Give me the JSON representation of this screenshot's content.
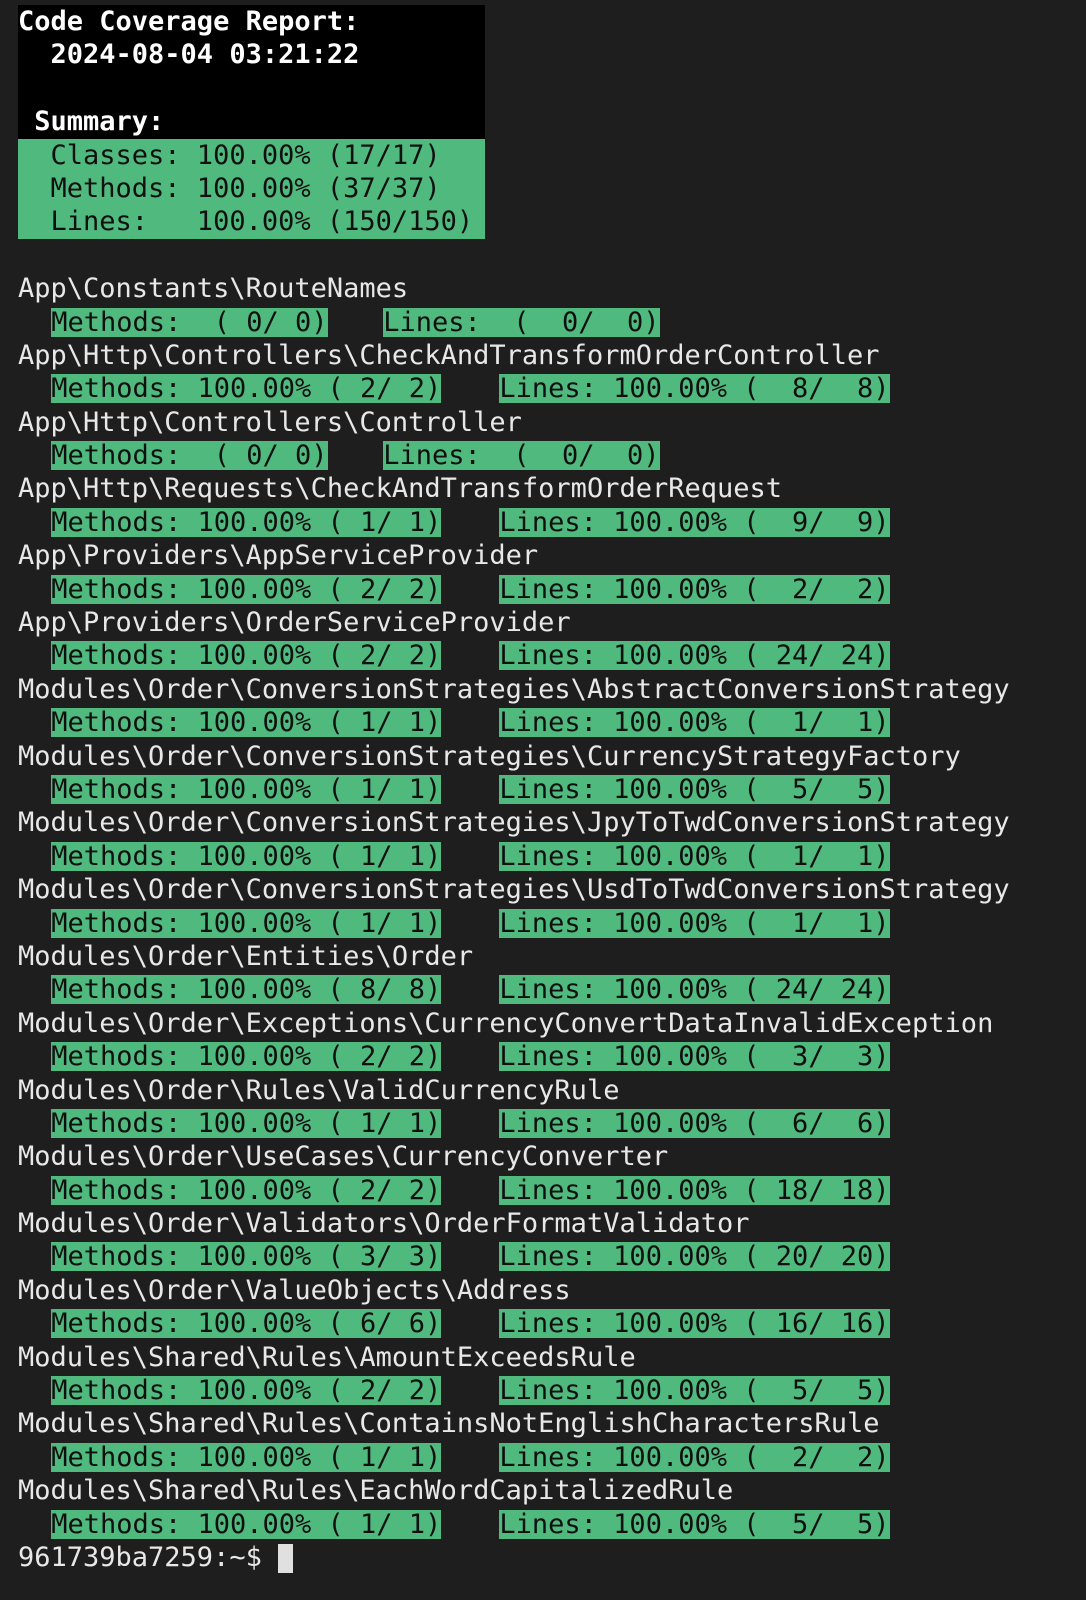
{
  "report": {
    "title": "Code Coverage Report:",
    "timestamp": "  2024-08-04 03:21:22",
    "summary_label": " Summary:",
    "summary": {
      "classes": "  Classes: 100.00% (17/17)",
      "methods": "  Methods: 100.00% (37/37)",
      "lines": "  Lines:   100.00% (150/150)"
    }
  },
  "colors": {
    "background": "#1e1e1e",
    "header_background": "#000000",
    "highlight": "#50b97e"
  },
  "classes": [
    {
      "name": "App\\Constants\\RouteNames",
      "methods": "Methods:  ( 0/ 0)",
      "lines": "Lines:  (  0/  0)",
      "covered": false
    },
    {
      "name": "App\\Http\\Controllers\\CheckAndTransformOrderController",
      "methods": "Methods: 100.00% ( 2/ 2)",
      "lines": "Lines: 100.00% (  8/  8)",
      "covered": true
    },
    {
      "name": "App\\Http\\Controllers\\Controller",
      "methods": "Methods:  ( 0/ 0)",
      "lines": "Lines:  (  0/  0)",
      "covered": false
    },
    {
      "name": "App\\Http\\Requests\\CheckAndTransformOrderRequest",
      "methods": "Methods: 100.00% ( 1/ 1)",
      "lines": "Lines: 100.00% (  9/  9)",
      "covered": true
    },
    {
      "name": "App\\Providers\\AppServiceProvider",
      "methods": "Methods: 100.00% ( 2/ 2)",
      "lines": "Lines: 100.00% (  2/  2)",
      "covered": true
    },
    {
      "name": "App\\Providers\\OrderServiceProvider",
      "methods": "Methods: 100.00% ( 2/ 2)",
      "lines": "Lines: 100.00% ( 24/ 24)",
      "covered": true
    },
    {
      "name": "Modules\\Order\\ConversionStrategies\\AbstractConversionStrategy",
      "methods": "Methods: 100.00% ( 1/ 1)",
      "lines": "Lines: 100.00% (  1/  1)",
      "covered": true
    },
    {
      "name": "Modules\\Order\\ConversionStrategies\\CurrencyStrategyFactory",
      "methods": "Methods: 100.00% ( 1/ 1)",
      "lines": "Lines: 100.00% (  5/  5)",
      "covered": true
    },
    {
      "name": "Modules\\Order\\ConversionStrategies\\JpyToTwdConversionStrategy",
      "methods": "Methods: 100.00% ( 1/ 1)",
      "lines": "Lines: 100.00% (  1/  1)",
      "covered": true
    },
    {
      "name": "Modules\\Order\\ConversionStrategies\\UsdToTwdConversionStrategy",
      "methods": "Methods: 100.00% ( 1/ 1)",
      "lines": "Lines: 100.00% (  1/  1)",
      "covered": true
    },
    {
      "name": "Modules\\Order\\Entities\\Order",
      "methods": "Methods: 100.00% ( 8/ 8)",
      "lines": "Lines: 100.00% ( 24/ 24)",
      "covered": true
    },
    {
      "name": "Modules\\Order\\Exceptions\\CurrencyConvertDataInvalidException",
      "methods": "Methods: 100.00% ( 2/ 2)",
      "lines": "Lines: 100.00% (  3/  3)",
      "covered": true
    },
    {
      "name": "Modules\\Order\\Rules\\ValidCurrencyRule",
      "methods": "Methods: 100.00% ( 1/ 1)",
      "lines": "Lines: 100.00% (  6/  6)",
      "covered": true
    },
    {
      "name": "Modules\\Order\\UseCases\\CurrencyConverter",
      "methods": "Methods: 100.00% ( 2/ 2)",
      "lines": "Lines: 100.00% ( 18/ 18)",
      "covered": true
    },
    {
      "name": "Modules\\Order\\Validators\\OrderFormatValidator",
      "methods": "Methods: 100.00% ( 3/ 3)",
      "lines": "Lines: 100.00% ( 20/ 20)",
      "covered": true
    },
    {
      "name": "Modules\\Order\\ValueObjects\\Address",
      "methods": "Methods: 100.00% ( 6/ 6)",
      "lines": "Lines: 100.00% ( 16/ 16)",
      "covered": true
    },
    {
      "name": "Modules\\Shared\\Rules\\AmountExceedsRule",
      "methods": "Methods: 100.00% ( 2/ 2)",
      "lines": "Lines: 100.00% (  5/  5)",
      "covered": true
    },
    {
      "name": "Modules\\Shared\\Rules\\ContainsNotEnglishCharactersRule",
      "methods": "Methods: 100.00% ( 1/ 1)",
      "lines": "Lines: 100.00% (  2/  2)",
      "covered": true
    },
    {
      "name": "Modules\\Shared\\Rules\\EachWordCapitalizedRule",
      "methods": "Methods: 100.00% ( 1/ 1)",
      "lines": "Lines: 100.00% (  5/  5)",
      "covered": true
    }
  ],
  "prompt": {
    "text": "961739ba7259:~$"
  }
}
